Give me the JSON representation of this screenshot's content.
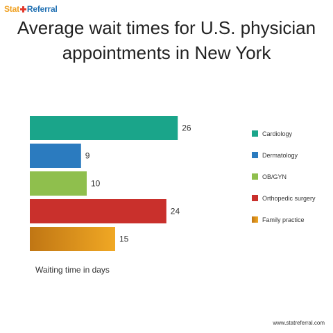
{
  "logo": {
    "part1": "Stat",
    "part2": "Referral"
  },
  "source": "www.statreferral.com",
  "chart_data": {
    "type": "bar",
    "orientation": "horizontal",
    "title": "Average wait times for U.S. physician appointments in New York",
    "title_lines": [
      "Average wait times for U.S. physician",
      "appointments in New York"
    ],
    "xlabel": "Waiting time in days",
    "ylabel": "",
    "categories": [
      "Cardiology",
      "Dermatology",
      "OB/GYN",
      "Orthopedic surgery",
      "Family practice"
    ],
    "values": [
      26,
      9,
      10,
      24,
      15
    ],
    "colors": [
      "#1aa58a",
      "#2b7bbf",
      "#8fbf4d",
      "#c9302c",
      "#e9a020"
    ],
    "legend_position": "right",
    "grid": false,
    "data_labels": true
  }
}
